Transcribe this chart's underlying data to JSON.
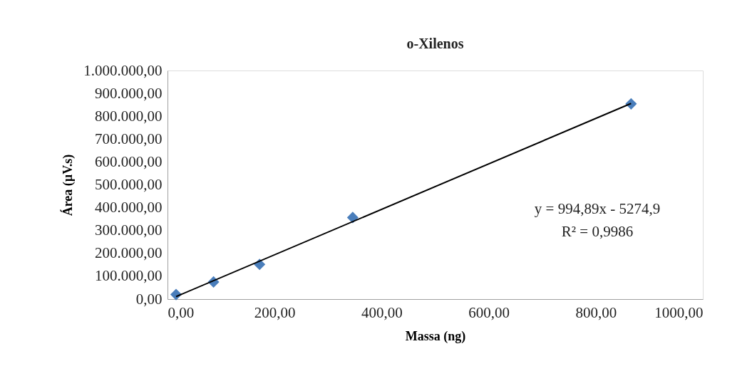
{
  "chart_data": {
    "type": "scatter",
    "title": "o-Xilenos",
    "xlabel": "Massa (ng)",
    "ylabel": "Área (µV.s)",
    "x": [
      16,
      86,
      172,
      346,
      866
    ],
    "series": [
      {
        "type": "scatter",
        "color": "#4a7ebb",
        "marker": "diamond",
        "values": [
          20000,
          75000,
          152000,
          357000,
          854000
        ]
      },
      {
        "type": "line",
        "color": "#000000",
        "line_style": "solid",
        "x": [
          16,
          866
        ],
        "values": [
          11000,
          856000
        ]
      }
    ],
    "xlim": [
      0,
      1000
    ],
    "ylim": [
      0,
      1000000
    ],
    "xticks": [
      {
        "value": 0,
        "label": "0,00"
      },
      {
        "value": 200,
        "label": "200,00"
      },
      {
        "value": 400,
        "label": "400,00"
      },
      {
        "value": 600,
        "label": "600,00"
      },
      {
        "value": 800,
        "label": "800,00"
      },
      {
        "value": 1000,
        "label": "1000,00"
      }
    ],
    "yticks": [
      {
        "value": 0,
        "label": "0,00"
      },
      {
        "value": 100000,
        "label": "100.000,00"
      },
      {
        "value": 200000,
        "label": "200.000,00"
      },
      {
        "value": 300000,
        "label": "300.000,00"
      },
      {
        "value": 400000,
        "label": "400.000,00"
      },
      {
        "value": 500000,
        "label": "500.000,00"
      },
      {
        "value": 600000,
        "label": "600.000,00"
      },
      {
        "value": 700000,
        "label": "700.000,00"
      },
      {
        "value": 800000,
        "label": "800.000,00"
      },
      {
        "value": 900000,
        "label": "900.000,00"
      },
      {
        "value": 1000000,
        "label": "1.000.000,00"
      }
    ],
    "annotations": [
      "y = 994,89x - 5274,9",
      "R² = 0,9986"
    ],
    "grid": false
  }
}
